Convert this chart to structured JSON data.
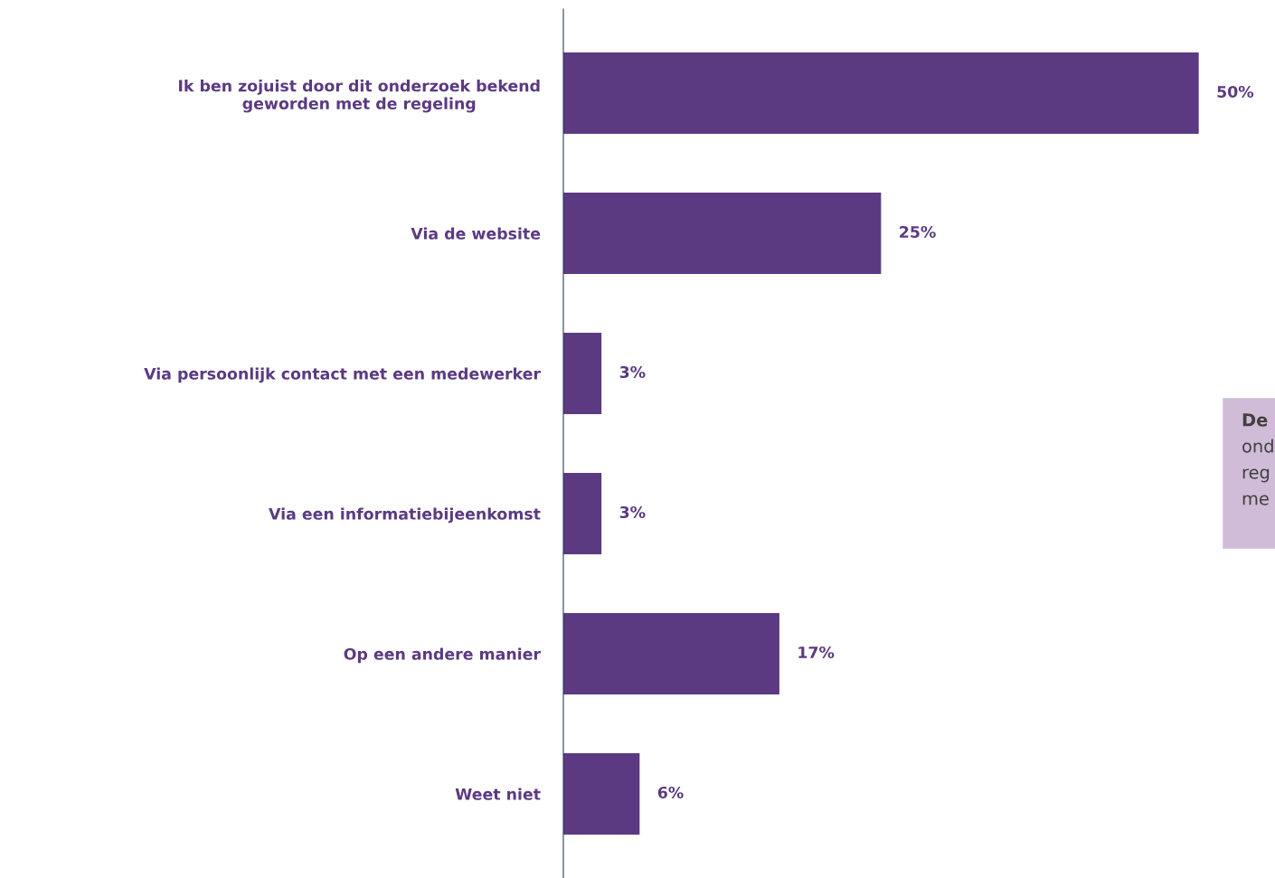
{
  "chart_data": {
    "type": "bar",
    "orientation": "horizontal",
    "categories": [
      "Ik ben zojuist door dit onderzoek bekend\ngeworden met de regeling",
      "Via de website",
      "Via persoonlijk contact met een medewerker",
      "Via een informatiebijeenkomst",
      "Op een andere manier",
      "Weet niet"
    ],
    "values": [
      50,
      25,
      3,
      3,
      17,
      6
    ],
    "value_labels": [
      "50%",
      "25%",
      "3%",
      "3%",
      "17%",
      "6%"
    ],
    "color": "#5b3a82",
    "tick_labels": "y",
    "grid": false,
    "annotations": [
      "De\nond\nreg\nme"
    ]
  }
}
